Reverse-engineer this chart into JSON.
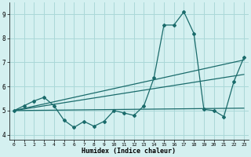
{
  "xlabel": "Humidex (Indice chaleur)",
  "bg_color": "#d4f0f0",
  "grid_color": "#aad8d8",
  "line_color": "#1a6b6b",
  "xlim": [
    -0.5,
    23.5
  ],
  "ylim": [
    3.8,
    9.5
  ],
  "xticks": [
    0,
    1,
    2,
    3,
    4,
    5,
    6,
    7,
    8,
    9,
    10,
    11,
    12,
    13,
    14,
    15,
    16,
    17,
    18,
    19,
    20,
    21,
    22,
    23
  ],
  "yticks": [
    4,
    5,
    6,
    7,
    8,
    9
  ],
  "line1_x": [
    0,
    1,
    2,
    3,
    4,
    5,
    6,
    7,
    8,
    9,
    10,
    11,
    12,
    13,
    14,
    15,
    16,
    17,
    18,
    19,
    20,
    21,
    22,
    23
  ],
  "line1_y": [
    5.0,
    5.2,
    5.4,
    5.55,
    5.2,
    4.6,
    4.3,
    4.55,
    4.35,
    4.55,
    5.0,
    4.9,
    4.8,
    5.2,
    6.35,
    8.55,
    8.55,
    9.1,
    8.2,
    5.05,
    5.0,
    4.75,
    6.2,
    7.2
  ],
  "line2_x": [
    0,
    23
  ],
  "line2_y": [
    5.0,
    5.1
  ],
  "line3_x": [
    0,
    23
  ],
  "line3_y": [
    5.0,
    6.5
  ],
  "line4_x": [
    0,
    23
  ],
  "line4_y": [
    5.0,
    7.1
  ]
}
